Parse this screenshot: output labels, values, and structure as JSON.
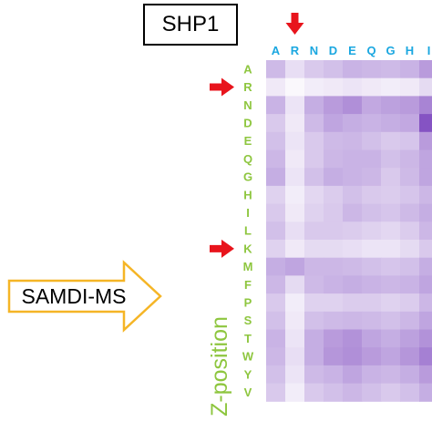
{
  "title": "SHP1",
  "method_label": "SAMDI-MS",
  "axis_title": "Z-position",
  "colors": {
    "col_labels": "#1aa7e0",
    "row_labels": "#8ec63f",
    "arrows": "#e8141c",
    "method_arrow_stroke": "#f5b526",
    "heat_low": "#ffffff",
    "heat_high": "#7f4ac0"
  },
  "highlights": {
    "column_marker": "R",
    "row_markers": [
      "R",
      "K"
    ]
  },
  "chart_data": {
    "type": "heatmap",
    "columns_visible": [
      "A",
      "R",
      "N",
      "D",
      "E",
      "Q",
      "G",
      "H",
      "I"
    ],
    "rows": [
      "A",
      "R",
      "N",
      "D",
      "E",
      "Q",
      "G",
      "H",
      "I",
      "L",
      "K",
      "M",
      "F",
      "P",
      "S",
      "T",
      "W",
      "Y",
      "V"
    ],
    "ylabel": "Z-position",
    "values": [
      [
        0.38,
        0.18,
        0.3,
        0.35,
        0.42,
        0.4,
        0.38,
        0.42,
        0.55
      ],
      [
        0.12,
        0.04,
        0.1,
        0.12,
        0.15,
        0.12,
        0.1,
        0.12,
        0.2
      ],
      [
        0.42,
        0.15,
        0.45,
        0.55,
        0.62,
        0.48,
        0.52,
        0.55,
        0.68
      ],
      [
        0.3,
        0.12,
        0.38,
        0.5,
        0.45,
        0.42,
        0.45,
        0.48,
        0.95
      ],
      [
        0.35,
        0.15,
        0.3,
        0.38,
        0.4,
        0.35,
        0.3,
        0.32,
        0.55
      ],
      [
        0.4,
        0.12,
        0.3,
        0.4,
        0.42,
        0.42,
        0.35,
        0.4,
        0.5
      ],
      [
        0.45,
        0.15,
        0.35,
        0.45,
        0.42,
        0.4,
        0.3,
        0.38,
        0.5
      ],
      [
        0.25,
        0.1,
        0.22,
        0.28,
        0.35,
        0.3,
        0.28,
        0.32,
        0.4
      ],
      [
        0.3,
        0.12,
        0.25,
        0.3,
        0.4,
        0.35,
        0.32,
        0.38,
        0.45
      ],
      [
        0.35,
        0.18,
        0.3,
        0.3,
        0.28,
        0.25,
        0.22,
        0.28,
        0.4
      ],
      [
        0.25,
        0.12,
        0.2,
        0.2,
        0.18,
        0.15,
        0.15,
        0.2,
        0.3
      ],
      [
        0.45,
        0.5,
        0.4,
        0.4,
        0.38,
        0.35,
        0.32,
        0.35,
        0.45
      ],
      [
        0.4,
        0.2,
        0.38,
        0.42,
        0.45,
        0.42,
        0.4,
        0.42,
        0.5
      ],
      [
        0.3,
        0.1,
        0.25,
        0.25,
        0.28,
        0.28,
        0.25,
        0.28,
        0.4
      ],
      [
        0.35,
        0.12,
        0.35,
        0.38,
        0.4,
        0.38,
        0.35,
        0.4,
        0.5
      ],
      [
        0.42,
        0.15,
        0.45,
        0.55,
        0.6,
        0.5,
        0.45,
        0.52,
        0.6
      ],
      [
        0.4,
        0.18,
        0.45,
        0.58,
        0.62,
        0.55,
        0.5,
        0.58,
        0.7
      ],
      [
        0.35,
        0.15,
        0.38,
        0.42,
        0.5,
        0.42,
        0.4,
        0.45,
        0.55
      ],
      [
        0.3,
        0.1,
        0.3,
        0.35,
        0.4,
        0.35,
        0.3,
        0.35,
        0.45
      ]
    ]
  }
}
